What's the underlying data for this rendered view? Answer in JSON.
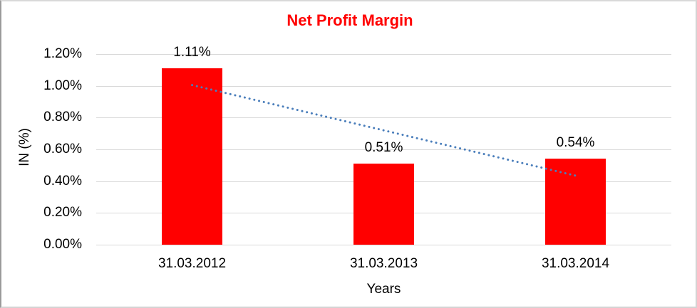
{
  "window": {
    "background": "#ffffff",
    "border_color": "#d4d4d4"
  },
  "chart_data": {
    "type": "bar",
    "title": "Net Profit Margin",
    "title_color": "#ff0000",
    "xlabel": "Years",
    "ylabel": "IN (%)",
    "categories": [
      "31.03.2012",
      "31.03.2013",
      "31.03.2014"
    ],
    "values": [
      1.11,
      0.51,
      0.54
    ],
    "value_labels": [
      "1.11%",
      "0.51%",
      "0.54%"
    ],
    "bar_color": "#ff0000",
    "ylim": [
      0,
      1.2
    ],
    "ytick_step": 0.2,
    "ytick_labels": [
      "0.00%",
      "0.20%",
      "0.40%",
      "0.60%",
      "0.80%",
      "1.00%",
      "1.20%"
    ],
    "grid": true,
    "gridline_color": "#d9d9d9",
    "legend": "none",
    "trendline": {
      "type": "linear",
      "style": "dotted",
      "color": "#4a7ebb",
      "start_value": 1.005,
      "end_value": 0.435
    }
  }
}
